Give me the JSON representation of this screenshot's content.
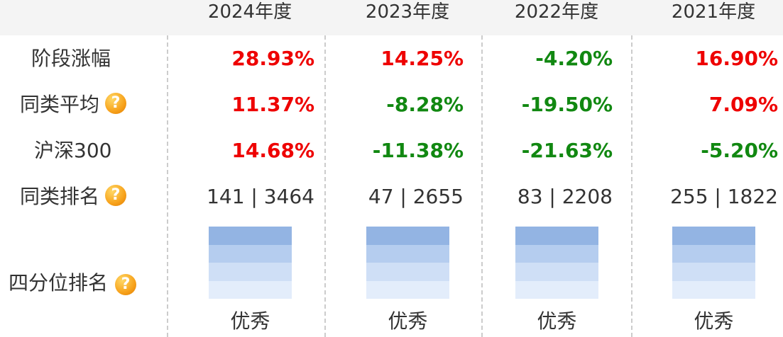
{
  "colors": {
    "positive": "#ee0000",
    "negative": "#118811",
    "quartile_segments": [
      "#93b4e3",
      "#b5cdef",
      "#cfdff6",
      "#e3edfb"
    ]
  },
  "header": {
    "years": [
      "2024年度",
      "2023年度",
      "2022年度",
      "2021年度"
    ]
  },
  "rows": {
    "stage_gain": {
      "label": "阶段涨幅",
      "values": [
        {
          "text": "28.93%",
          "sign": "positive"
        },
        {
          "text": "14.25%",
          "sign": "positive"
        },
        {
          "text": "-4.20%",
          "sign": "negative"
        },
        {
          "text": "16.90%",
          "sign": "positive"
        }
      ]
    },
    "peer_average": {
      "label": "同类平均",
      "help_icon": "question-icon",
      "values": [
        {
          "text": "11.37%",
          "sign": "positive"
        },
        {
          "text": "-8.28%",
          "sign": "negative"
        },
        {
          "text": "-19.50%",
          "sign": "negative"
        },
        {
          "text": "7.09%",
          "sign": "positive"
        }
      ]
    },
    "csi300": {
      "label": "沪深300",
      "values": [
        {
          "text": "14.68%",
          "sign": "positive"
        },
        {
          "text": "-11.38%",
          "sign": "negative"
        },
        {
          "text": "-21.63%",
          "sign": "negative"
        },
        {
          "text": "-5.20%",
          "sign": "negative"
        }
      ]
    },
    "peer_rank": {
      "label": "同类排名",
      "help_icon": "question-icon",
      "values": [
        "141 | 3464",
        "47 | 2655",
        "83 | 2208",
        "255 | 1822"
      ]
    },
    "quartile_rank": {
      "label": "四分位排名",
      "help_icon": "question-icon",
      "ratings": [
        "优秀",
        "优秀",
        "优秀",
        "优秀"
      ]
    }
  }
}
